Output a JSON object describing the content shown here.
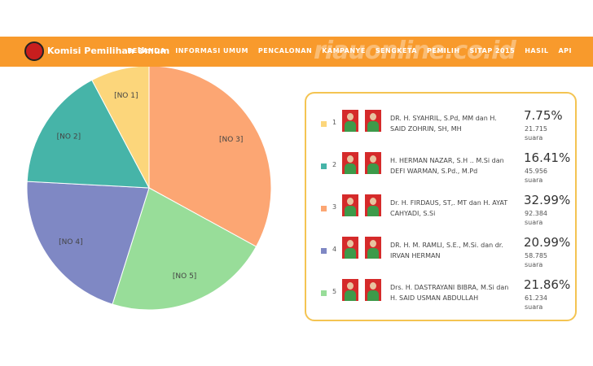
{
  "header": {
    "brand": "Komisi Pemilihan Umum",
    "menu": [
      "BERANDA",
      "INFORMASI UMUM",
      "PENCALONAN",
      "KAMPANYE",
      "SENGKETA",
      "PEMILIH",
      "SITAP 2015",
      "HASIL",
      "API"
    ],
    "watermark": "riauonline.co.id"
  },
  "chart_data": {
    "type": "pie",
    "categories": [
      "[NO 3]",
      "[NO 5]",
      "[NO 4]",
      "[NO 2]",
      "[NO 1]"
    ],
    "values": [
      32.99,
      21.86,
      20.99,
      16.41,
      7.75
    ],
    "colors": [
      "#fca673",
      "#98dd99",
      "#7f88c4",
      "#46b4a8",
      "#fcd67b"
    ]
  },
  "legend": {
    "items": [
      {
        "no": "1",
        "color": "#fcd67b",
        "name": "DR. H. SYAHRIL, S.Pd, MM dan H. SAID ZOHRIN, SH, MH",
        "percent": "7.75%",
        "votes": "21.715",
        "unit": "suara"
      },
      {
        "no": "2",
        "color": "#46b4a8",
        "name": "H. HERMAN NAZAR, S.H .. M.Si dan DEFI WARMAN, S.Pd., M.Pd",
        "percent": "16.41%",
        "votes": "45.956",
        "unit": "suara"
      },
      {
        "no": "3",
        "color": "#fca673",
        "name": "Dr. H. FIRDAUS, ST,. MT dan H. AYAT CAHYADI, S.Si",
        "percent": "32.99%",
        "votes": "92.384",
        "unit": "suara"
      },
      {
        "no": "4",
        "color": "#7f88c4",
        "name": "DR. H. M. RAMLI, S.E., M.Si. dan dr. IRVAN HERMAN",
        "percent": "20.99%",
        "votes": "58.785",
        "unit": "suara"
      },
      {
        "no": "5",
        "color": "#98dd99",
        "name": "Drs. H. DASTRAYANI BIBRA, M.Si dan H. SAID USMAN ABDULLAH",
        "percent": "21.86%",
        "votes": "61.234",
        "unit": "suara"
      }
    ]
  }
}
